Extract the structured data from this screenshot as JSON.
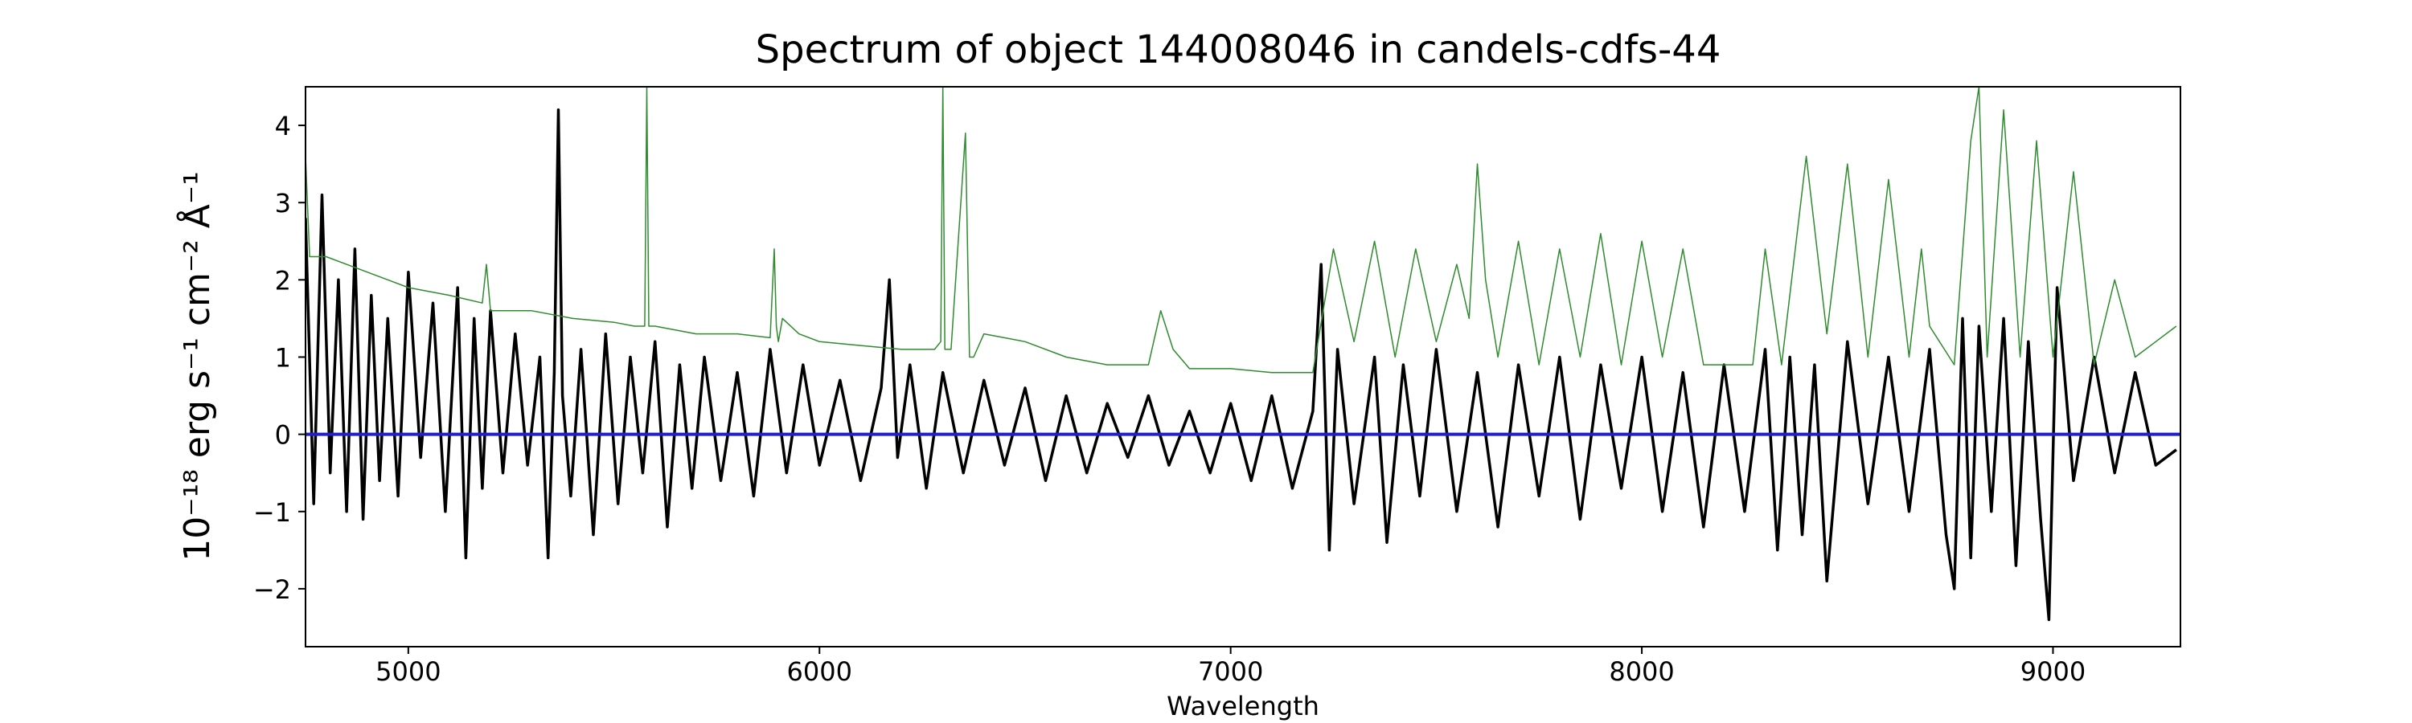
{
  "chart_data": {
    "type": "line",
    "title": "Spectrum of object 144008046 in candels-cdfs-44",
    "xlabel": "Wavelength",
    "ylabel": "10⁻¹⁸ erg s⁻¹ cm⁻² Å⁻¹",
    "xlim": [
      4750,
      9310
    ],
    "ylim": [
      -2.75,
      4.5
    ],
    "xticks": [
      5000,
      6000,
      7000,
      8000,
      9000
    ],
    "yticks": [
      -2,
      -1,
      0,
      1,
      2,
      3,
      4
    ],
    "grid": false,
    "series": [
      {
        "color": "#000000",
        "x": [
          4750,
          4770,
          4790,
          4810,
          4830,
          4850,
          4870,
          4890,
          4910,
          4930,
          4950,
          4975,
          5000,
          5030,
          5060,
          5090,
          5120,
          5140,
          5160,
          5180,
          5200,
          5230,
          5260,
          5290,
          5320,
          5340,
          5355,
          5365,
          5375,
          5395,
          5420,
          5450,
          5480,
          5510,
          5540,
          5570,
          5600,
          5630,
          5660,
          5690,
          5720,
          5760,
          5800,
          5840,
          5880,
          5920,
          5960,
          6000,
          6050,
          6100,
          6150,
          6170,
          6190,
          6220,
          6260,
          6300,
          6350,
          6400,
          6450,
          6500,
          6550,
          6600,
          6650,
          6700,
          6750,
          6800,
          6850,
          6900,
          6950,
          7000,
          7050,
          7100,
          7150,
          7200,
          7220,
          7240,
          7260,
          7300,
          7350,
          7380,
          7420,
          7460,
          7500,
          7550,
          7600,
          7650,
          7700,
          7750,
          7800,
          7850,
          7900,
          7950,
          8000,
          8050,
          8100,
          8150,
          8200,
          8250,
          8300,
          8330,
          8360,
          8390,
          8420,
          8450,
          8500,
          8550,
          8600,
          8650,
          8700,
          8740,
          8760,
          8780,
          8800,
          8820,
          8850,
          8880,
          8910,
          8940,
          8970,
          8990,
          9010,
          9050,
          9100,
          9150,
          9200,
          9250,
          9300
        ],
        "y": [
          2.8,
          -0.9,
          3.1,
          -0.5,
          2.0,
          -1.0,
          2.4,
          -1.1,
          1.8,
          -0.6,
          1.5,
          -0.8,
          2.1,
          -0.3,
          1.7,
          -1.0,
          1.9,
          -1.6,
          1.5,
          -0.7,
          1.6,
          -0.5,
          1.3,
          -0.4,
          1.0,
          -1.6,
          0.8,
          4.2,
          0.5,
          -0.8,
          1.1,
          -1.3,
          1.3,
          -0.9,
          1.0,
          -0.5,
          1.2,
          -1.2,
          0.9,
          -0.7,
          1.0,
          -0.6,
          0.8,
          -0.8,
          1.1,
          -0.5,
          0.9,
          -0.4,
          0.7,
          -0.6,
          0.6,
          2.0,
          -0.3,
          0.9,
          -0.7,
          0.8,
          -0.5,
          0.7,
          -0.4,
          0.6,
          -0.6,
          0.5,
          -0.5,
          0.4,
          -0.3,
          0.5,
          -0.4,
          0.3,
          -0.5,
          0.4,
          -0.6,
          0.5,
          -0.7,
          0.3,
          2.2,
          -1.5,
          1.1,
          -0.9,
          1.0,
          -1.4,
          0.9,
          -0.8,
          1.1,
          -1.0,
          0.8,
          -1.2,
          0.9,
          -0.8,
          1.0,
          -1.1,
          0.9,
          -0.7,
          1.0,
          -1.0,
          0.8,
          -1.2,
          0.9,
          -1.0,
          1.1,
          -1.5,
          1.0,
          -1.3,
          0.9,
          -1.9,
          1.2,
          -0.9,
          1.0,
          -1.0,
          1.1,
          -1.3,
          -2.0,
          1.5,
          -1.6,
          1.4,
          -1.0,
          1.5,
          -1.7,
          1.2,
          -1.1,
          -2.4,
          1.9,
          -0.6,
          1.0,
          -0.5,
          0.8,
          -0.4,
          -0.2
        ]
      },
      {
        "color": "#2e8b2e",
        "x": [
          4750,
          4760,
          4800,
          4850,
          4900,
          4950,
          5000,
          5100,
          5180,
          5190,
          5200,
          5210,
          5300,
          5400,
          5500,
          5550,
          5575,
          5580,
          5585,
          5600,
          5700,
          5800,
          5880,
          5890,
          5895,
          5900,
          5910,
          5950,
          6000,
          6100,
          6200,
          6280,
          6295,
          6300,
          6305,
          6320,
          6355,
          6365,
          6375,
          6400,
          6500,
          6600,
          6700,
          6800,
          6830,
          6860,
          6900,
          7000,
          7100,
          7200,
          7250,
          7300,
          7350,
          7400,
          7450,
          7500,
          7550,
          7580,
          7600,
          7620,
          7650,
          7700,
          7750,
          7800,
          7850,
          7900,
          7950,
          8000,
          8050,
          8100,
          8150,
          8200,
          8270,
          8300,
          8340,
          8400,
          8450,
          8500,
          8550,
          8600,
          8650,
          8680,
          8700,
          8760,
          8800,
          8820,
          8840,
          8880,
          8920,
          8960,
          9000,
          9050,
          9100,
          9150,
          9200,
          9250,
          9300
        ],
        "y": [
          3.6,
          2.3,
          2.3,
          2.2,
          2.1,
          2.0,
          1.9,
          1.8,
          1.7,
          2.2,
          1.6,
          1.6,
          1.6,
          1.5,
          1.45,
          1.4,
          1.4,
          4.5,
          1.4,
          1.4,
          1.3,
          1.3,
          1.25,
          2.4,
          1.4,
          1.2,
          1.5,
          1.3,
          1.2,
          1.15,
          1.1,
          1.1,
          1.2,
          4.5,
          1.1,
          1.1,
          3.9,
          1.0,
          1.0,
          1.3,
          1.2,
          1.0,
          0.9,
          0.9,
          1.6,
          1.1,
          0.85,
          0.85,
          0.8,
          0.8,
          2.4,
          1.2,
          2.5,
          1.0,
          2.4,
          1.2,
          2.2,
          1.5,
          3.5,
          2.0,
          1.0,
          2.5,
          0.9,
          2.4,
          1.0,
          2.6,
          0.9,
          2.5,
          1.0,
          2.4,
          0.9,
          0.9,
          0.9,
          2.4,
          0.9,
          3.6,
          1.3,
          3.5,
          1.0,
          3.3,
          1.0,
          2.4,
          1.4,
          0.9,
          3.8,
          4.5,
          1.0,
          4.2,
          1.0,
          3.8,
          1.0,
          3.4,
          0.9,
          2.0,
          1.0,
          1.2,
          1.4
        ]
      },
      {
        "color": "#1f1fcc",
        "x": [
          4750,
          9310
        ],
        "y": [
          0,
          0
        ]
      }
    ]
  }
}
